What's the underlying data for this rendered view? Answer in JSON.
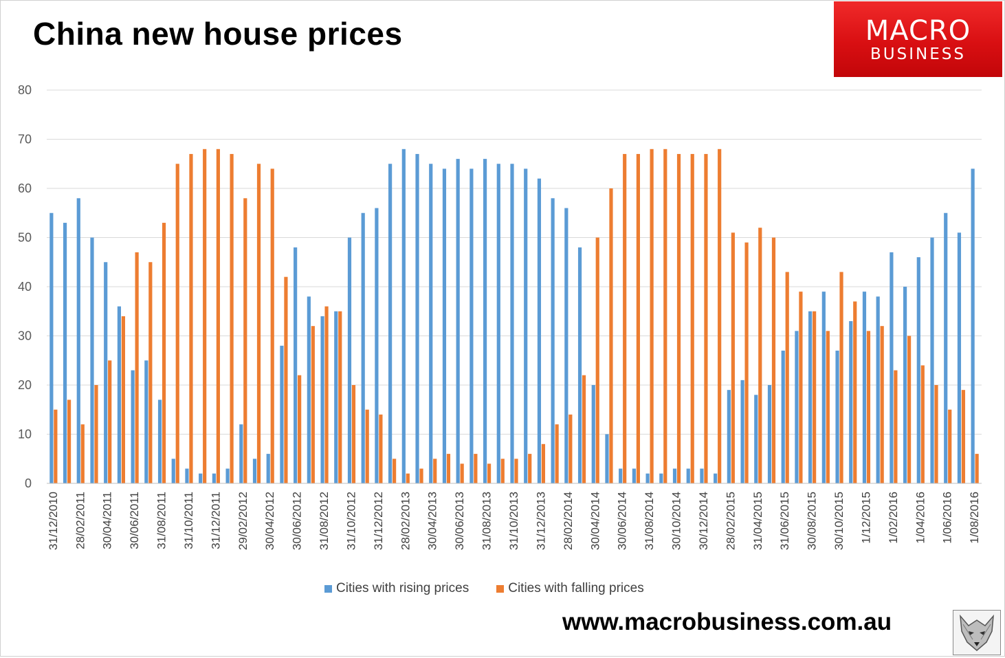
{
  "title": "China new house prices",
  "logo": {
    "line1": "MACRO",
    "line2": "BUSINESS"
  },
  "footer": {
    "url": "www.macrobusiness.com.au"
  },
  "colors": {
    "rising": "#5b9bd5",
    "falling": "#ed7d31",
    "logo_red": "#e0191c",
    "grid": "#d9d9d9"
  },
  "chart_data": {
    "type": "bar",
    "title": "China new house prices",
    "ylim": [
      0,
      80
    ],
    "yticks": [
      0,
      10,
      20,
      30,
      40,
      50,
      60,
      70,
      80
    ],
    "grid": true,
    "legend_position": "bottom",
    "x_tick_labels": [
      "31/12/2010",
      "28/02/2011",
      "30/04/2011",
      "30/06/2011",
      "31/08/2011",
      "31/10/2011",
      "31/12/2011",
      "29/02/2012",
      "30/04/2012",
      "30/06/2012",
      "31/08/2012",
      "31/10/2012",
      "31/12/2012",
      "28/02/2013",
      "30/04/2013",
      "30/06/2013",
      "31/08/2013",
      "31/10/2013",
      "31/12/2013",
      "28/02/2014",
      "30/04/2014",
      "30/06/2014",
      "31/08/2014",
      "30/10/2014",
      "30/12/2014",
      "28/02/2015",
      "31/04/2015",
      "31/06/2015",
      "30/08/2015",
      "30/10/2015",
      "1/12/2015",
      "1/02/2016",
      "1/04/2016",
      "1/06/2016",
      "1/08/2016"
    ],
    "series": [
      {
        "name": "Cities with rising prices",
        "values": [
          55,
          53,
          58,
          50,
          45,
          36,
          23,
          25,
          17,
          5,
          3,
          2,
          2,
          3,
          12,
          5,
          6,
          28,
          48,
          38,
          34,
          35,
          50,
          55,
          56,
          65,
          68,
          67,
          65,
          64,
          66,
          64,
          66,
          65,
          65,
          64,
          62,
          58,
          56,
          48,
          20,
          10,
          3,
          3,
          2,
          2,
          3,
          3,
          3,
          2,
          19,
          21,
          18,
          20,
          27,
          31,
          35,
          39,
          27,
          33,
          39,
          38,
          47,
          40,
          46,
          50,
          55,
          51,
          64
        ]
      },
      {
        "name": "Cities with falling prices",
        "values": [
          15,
          17,
          12,
          20,
          25,
          34,
          47,
          45,
          53,
          65,
          67,
          68,
          68,
          67,
          58,
          65,
          64,
          42,
          22,
          32,
          36,
          35,
          20,
          15,
          14,
          5,
          2,
          3,
          5,
          6,
          4,
          6,
          4,
          5,
          5,
          6,
          8,
          12,
          14,
          22,
          50,
          60,
          67,
          67,
          68,
          68,
          67,
          67,
          67,
          68,
          51,
          49,
          52,
          50,
          43,
          39,
          35,
          31,
          43,
          37,
          31,
          32,
          23,
          30,
          24,
          20,
          15,
          19,
          6
        ]
      }
    ]
  }
}
